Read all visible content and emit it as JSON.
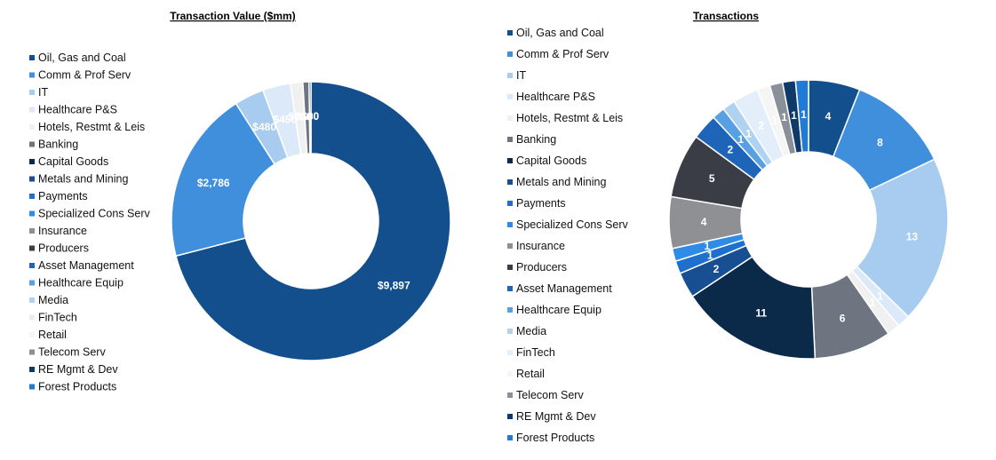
{
  "chart_data": [
    {
      "type": "pie",
      "variant": "donut",
      "title": "Transaction Value ($mm)",
      "legend_position": "left",
      "categories": [
        "Oil, Gas and Coal",
        "Comm & Prof Serv",
        "IT",
        "Healthcare P&S",
        "Hotels, Restmt & Leis",
        "Banking",
        "Capital Goods",
        "Metals and Mining",
        "Payments",
        "Specialized Cons Serv",
        "Insurance",
        "Producers",
        "Asset Management",
        "Healthcare Equip",
        "Media",
        "FinTech",
        "Retail",
        "Telecom Serv",
        "RE Mgmt & Dev",
        "Forest Products"
      ],
      "values": [
        9897,
        2786,
        480,
        450,
        200,
        100,
        30,
        0,
        0,
        0,
        0,
        0,
        0,
        0,
        0,
        0,
        0,
        0,
        0,
        0
      ],
      "labels": [
        "$9,897",
        "$2,786",
        "$480",
        "$450",
        "$200",
        "$100",
        "$30",
        "",
        "",
        "",
        "",
        "",
        "",
        "",
        "",
        "",
        "",
        "",
        "",
        ""
      ]
    },
    {
      "type": "pie",
      "variant": "donut",
      "title": "Transactions",
      "legend_position": "left",
      "categories": [
        "Oil, Gas and Coal",
        "Comm & Prof Serv",
        "IT",
        "Healthcare P&S",
        "Hotels, Restmt & Leis",
        "Banking",
        "Capital Goods",
        "Metals and Mining",
        "Payments",
        "Specialized Cons Serv",
        "Insurance",
        "Producers",
        "Asset Management",
        "Healthcare Equip",
        "Media",
        "FinTech",
        "Retail",
        "Telecom Serv",
        "RE Mgmt & Dev",
        "Forest Products"
      ],
      "values": [
        4,
        8,
        13,
        1,
        1,
        6,
        11,
        2,
        1,
        1,
        4,
        5,
        2,
        1,
        1,
        2,
        1,
        1,
        1,
        1
      ],
      "labels": [
        "4",
        "8",
        "13",
        "1",
        "1",
        "6",
        "11",
        "2",
        "1",
        "1",
        "4",
        "5",
        "2",
        "1",
        "1",
        "2",
        "1",
        "1",
        "1",
        "1"
      ]
    }
  ],
  "colors": [
    "#134f8c",
    "#3f8fdd",
    "#a8cbf0",
    "#dce9f8",
    "#f0f0f0",
    "#6e7480",
    "#0b2a4a",
    "#174f92",
    "#1e70cc",
    "#2e8be6",
    "#8e9094",
    "#3a3d45",
    "#1e64b8",
    "#58a0e4",
    "#b0d2f2",
    "#e2eefa",
    "#f5f5f5",
    "#8a9099",
    "#0e3a6a",
    "#1f7bd6"
  ]
}
